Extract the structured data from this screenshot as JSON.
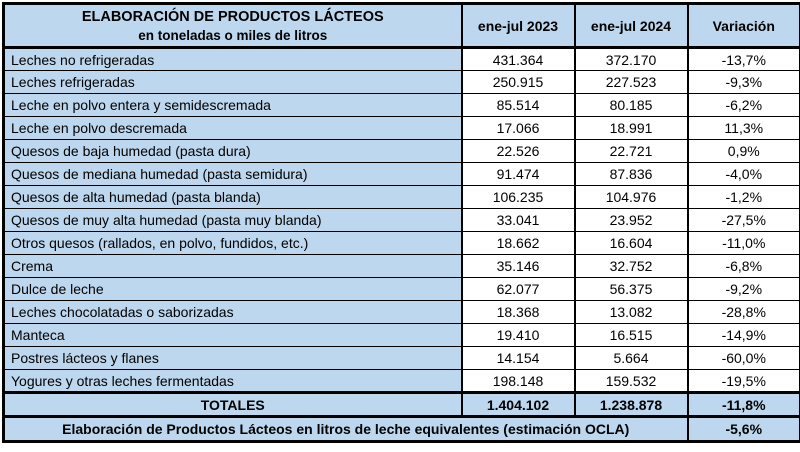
{
  "colors": {
    "header_bg": "#BDD7EE",
    "label_bg": "#BDD7EE",
    "cell_bg": "#FFFFFF",
    "border": "#000000"
  },
  "chart_data": {
    "type": "table",
    "title": "ELABORACIÓN DE PRODUCTOS LÁCTEOS",
    "subtitle": "en toneladas o miles de litros",
    "columns": [
      "ene-jul 2023",
      "ene-jul 2024",
      "Variación"
    ],
    "rows": [
      {
        "producto": "Leches no refrigeradas",
        "ene_jul_2023": "431.364",
        "ene_jul_2024": "372.170",
        "variacion": "-13,7%"
      },
      {
        "producto": "Leches refrigeradas",
        "ene_jul_2023": "250.915",
        "ene_jul_2024": "227.523",
        "variacion": "-9,3%"
      },
      {
        "producto": "Leche en polvo entera y semidescremada",
        "ene_jul_2023": "85.514",
        "ene_jul_2024": "80.185",
        "variacion": "-6,2%"
      },
      {
        "producto": "Leche en polvo descremada",
        "ene_jul_2023": "17.066",
        "ene_jul_2024": "18.991",
        "variacion": "11,3%"
      },
      {
        "producto": "Quesos de baja humedad (pasta dura)",
        "ene_jul_2023": "22.526",
        "ene_jul_2024": "22.721",
        "variacion": "0,9%"
      },
      {
        "producto": "Quesos de mediana humedad (pasta semidura)",
        "ene_jul_2023": "91.474",
        "ene_jul_2024": "87.836",
        "variacion": "-4,0%"
      },
      {
        "producto": "Quesos de alta humedad (pasta blanda)",
        "ene_jul_2023": "106.235",
        "ene_jul_2024": "104.976",
        "variacion": "-1,2%"
      },
      {
        "producto": "Quesos de muy alta humedad (pasta muy blanda)",
        "ene_jul_2023": "33.041",
        "ene_jul_2024": "23.952",
        "variacion": "-27,5%"
      },
      {
        "producto": "Otros quesos (rallados, en polvo, fundidos, etc.)",
        "ene_jul_2023": "18.662",
        "ene_jul_2024": "16.604",
        "variacion": "-11,0%"
      },
      {
        "producto": "Crema",
        "ene_jul_2023": "35.146",
        "ene_jul_2024": "32.752",
        "variacion": "-6,8%"
      },
      {
        "producto": "Dulce de leche",
        "ene_jul_2023": "62.077",
        "ene_jul_2024": "56.375",
        "variacion": "-9,2%"
      },
      {
        "producto": "Leches chocolatadas o saborizadas",
        "ene_jul_2023": "18.368",
        "ene_jul_2024": "13.082",
        "variacion": "-28,8%"
      },
      {
        "producto": "Manteca",
        "ene_jul_2023": "19.410",
        "ene_jul_2024": "16.515",
        "variacion": "-14,9%"
      },
      {
        "producto": "Postres lácteos y flanes",
        "ene_jul_2023": "14.154",
        "ene_jul_2024": "5.664",
        "variacion": "-60,0%"
      },
      {
        "producto": "Yogures y otras leches fermentadas",
        "ene_jul_2023": "198.148",
        "ene_jul_2024": "159.532",
        "variacion": "-19,5%"
      }
    ],
    "totals": {
      "label": "TOTALES",
      "ene_jul_2023": "1.404.102",
      "ene_jul_2024": "1.238.878",
      "variacion": "-11,8%"
    },
    "footer": {
      "label": "Elaboración de Productos Lácteos en litros de leche equivalentes (estimación OCLA)",
      "variacion": "-5,6%"
    }
  }
}
